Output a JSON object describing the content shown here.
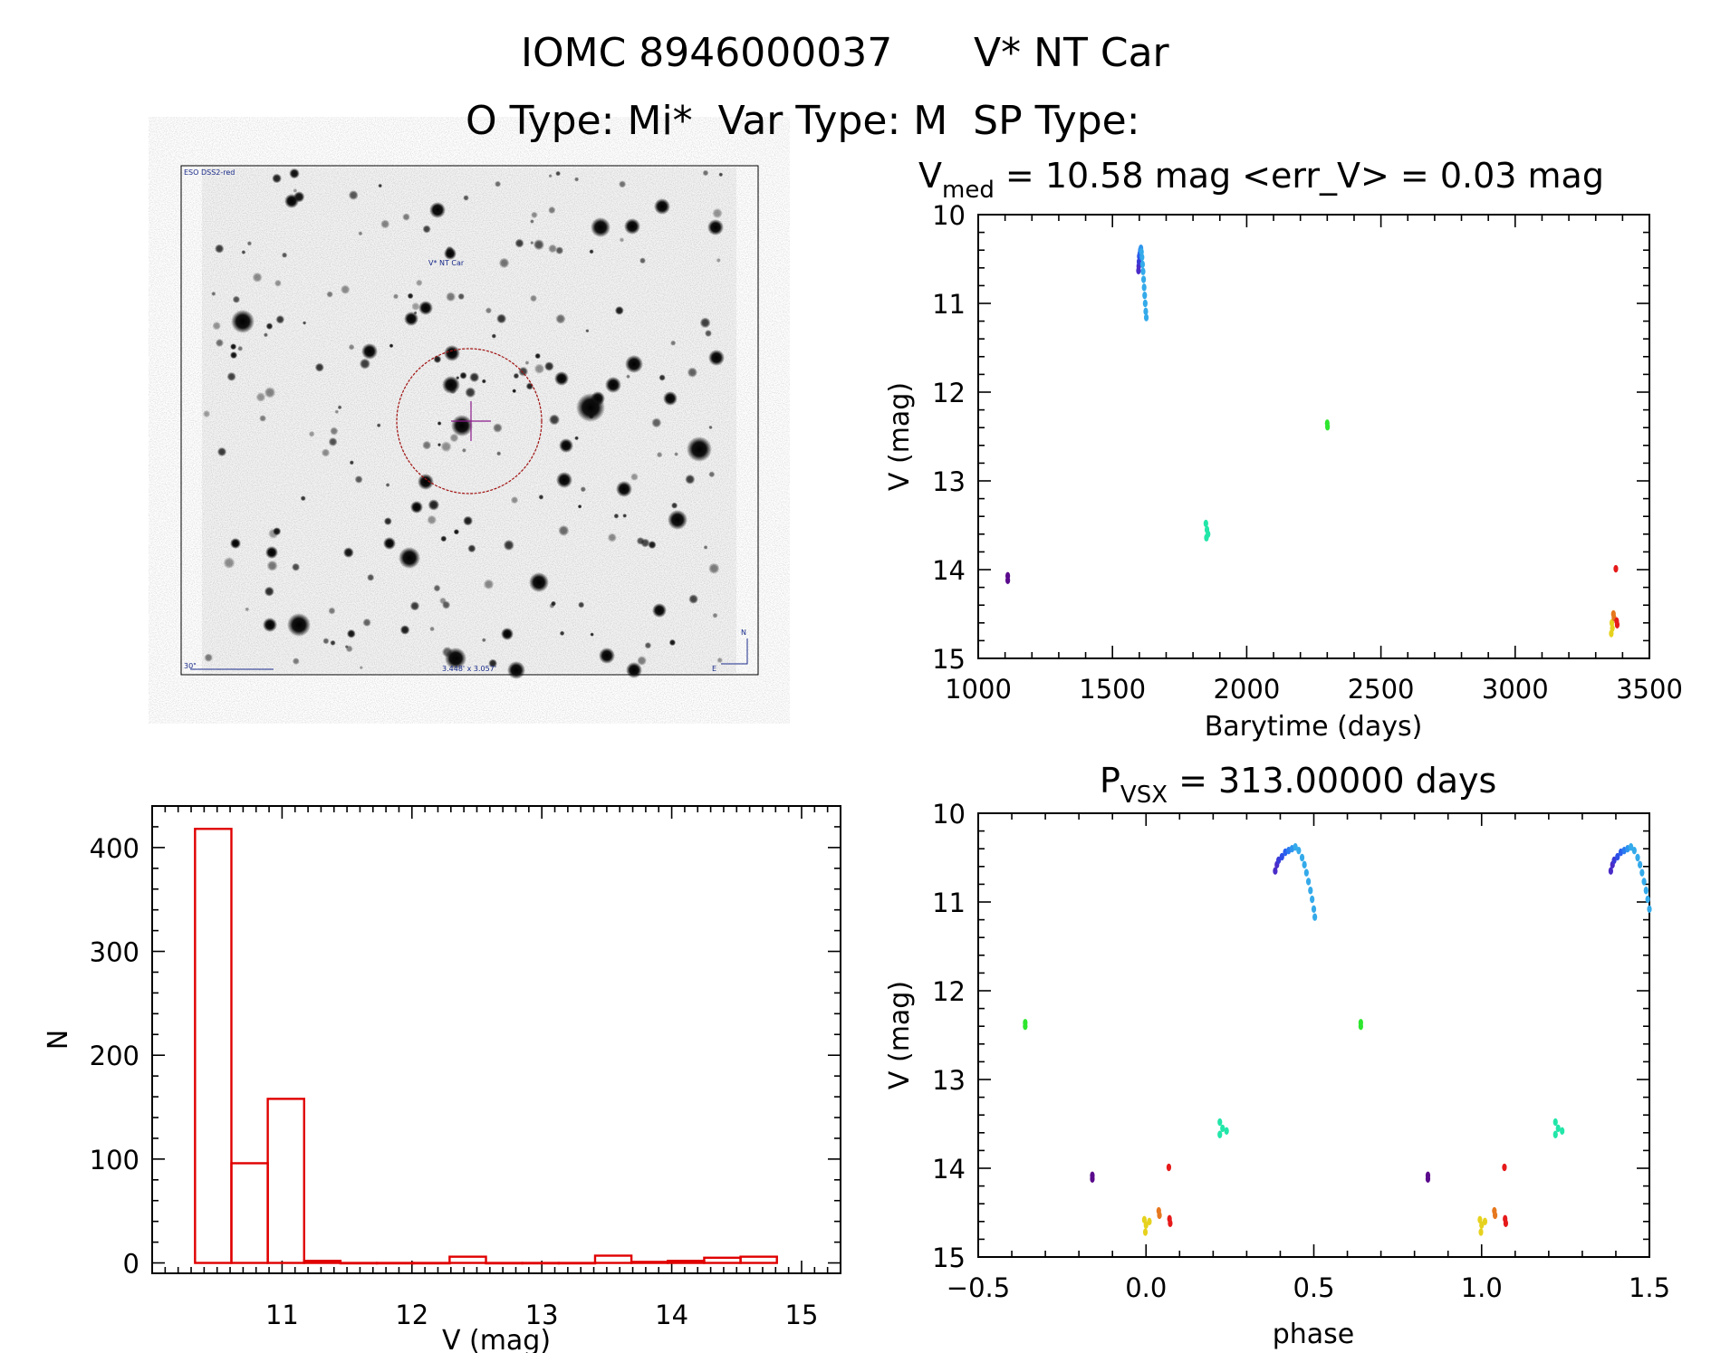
{
  "header": {
    "line1_id": "IOMC 8946000037",
    "line1_name": "V* NT Car",
    "line2": "O Type: Mi*  Var Type: M  SP Type:"
  },
  "image_panel": {
    "survey_label": "ESO DSS2-red",
    "target_label": "V* NT Car",
    "scale_label": "30\"",
    "size_label": "3.448' x 3.057'",
    "north_label": "N",
    "east_label": "E"
  },
  "chart_data": [
    {
      "id": "lightcurve",
      "type": "scatter",
      "title_prefix": "V",
      "title_sub": "med",
      "title_rest": " = 10.58 mag <err_V> = 0.03 mag",
      "xlabel": "Barytime (days)",
      "ylabel": "V (mag)",
      "xlim": [
        1000,
        3500
      ],
      "ylim": [
        15,
        10
      ],
      "xticks": [
        1000,
        1500,
        2000,
        2500,
        3000,
        3500
      ],
      "yticks": [
        10,
        11,
        12,
        13,
        14,
        15
      ],
      "points": [
        {
          "x": 1110,
          "y": 14.07,
          "color": "#5a0a8c"
        },
        {
          "x": 1110,
          "y": 14.12,
          "color": "#5a0a8c"
        },
        {
          "x": 1597,
          "y": 10.63,
          "color": "#4a2cc8"
        },
        {
          "x": 1598,
          "y": 10.58,
          "color": "#4a2cc8"
        },
        {
          "x": 1599,
          "y": 10.53,
          "color": "#3a3ad8"
        },
        {
          "x": 1600,
          "y": 10.47,
          "color": "#2c4ee6"
        },
        {
          "x": 1602,
          "y": 10.44,
          "color": "#2a60ee"
        },
        {
          "x": 1604,
          "y": 10.4,
          "color": "#2a7af0"
        },
        {
          "x": 1606,
          "y": 10.38,
          "color": "#2e95ee"
        },
        {
          "x": 1608,
          "y": 10.42,
          "color": "#34aaea"
        },
        {
          "x": 1610,
          "y": 10.48,
          "color": "#34aaea"
        },
        {
          "x": 1612,
          "y": 10.56,
          "color": "#34aaea"
        },
        {
          "x": 1614,
          "y": 10.64,
          "color": "#34aaea"
        },
        {
          "x": 1616,
          "y": 10.73,
          "color": "#34aaea"
        },
        {
          "x": 1618,
          "y": 10.82,
          "color": "#34aaea"
        },
        {
          "x": 1620,
          "y": 10.91,
          "color": "#34aaea"
        },
        {
          "x": 1622,
          "y": 11.0,
          "color": "#34aaea"
        },
        {
          "x": 1624,
          "y": 11.09,
          "color": "#34aaea"
        },
        {
          "x": 1626,
          "y": 11.16,
          "color": "#34aaea"
        },
        {
          "x": 1848,
          "y": 13.48,
          "color": "#22e6a8"
        },
        {
          "x": 1852,
          "y": 13.55,
          "color": "#22e6a8"
        },
        {
          "x": 1856,
          "y": 13.6,
          "color": "#22e6a8"
        },
        {
          "x": 1850,
          "y": 13.64,
          "color": "#22e6a8"
        },
        {
          "x": 2300,
          "y": 12.35,
          "color": "#2ee62e"
        },
        {
          "x": 2301,
          "y": 12.39,
          "color": "#2ee62e"
        },
        {
          "x": 3375,
          "y": 13.99,
          "color": "#e61a1a"
        },
        {
          "x": 3360,
          "y": 14.6,
          "color": "#e6d21e"
        },
        {
          "x": 3362,
          "y": 14.66,
          "color": "#e6d21e"
        },
        {
          "x": 3358,
          "y": 14.72,
          "color": "#e6d21e"
        },
        {
          "x": 3366,
          "y": 14.5,
          "color": "#e6781e"
        },
        {
          "x": 3368,
          "y": 14.54,
          "color": "#e6781e"
        },
        {
          "x": 3378,
          "y": 14.58,
          "color": "#e61a1a"
        },
        {
          "x": 3380,
          "y": 14.62,
          "color": "#e61a1a"
        }
      ]
    },
    {
      "id": "histogram",
      "type": "bar",
      "title": "",
      "xlabel": "V (mag)",
      "ylabel": "N",
      "xlim": [
        10.0,
        15.3
      ],
      "ylim": [
        -10,
        440
      ],
      "xticks": [
        11,
        12,
        13,
        14,
        15
      ],
      "yticks": [
        0,
        100,
        200,
        300,
        400
      ],
      "bin_edges": [
        10.33,
        10.61,
        10.89,
        11.17,
        11.45,
        11.73,
        12.01,
        12.29,
        12.57,
        12.85,
        13.13,
        13.41,
        13.69,
        13.97,
        14.25,
        14.53,
        14.81
      ],
      "counts": [
        418,
        96,
        158,
        2,
        0,
        0,
        0,
        6,
        0,
        0,
        0,
        7,
        1,
        2,
        5,
        6
      ]
    },
    {
      "id": "phased",
      "type": "scatter",
      "title_prefix": "P",
      "title_sub": "VSX",
      "title_rest": " = 313.00000 days",
      "xlabel": "phase",
      "ylabel": "V (mag)",
      "xlim": [
        -0.5,
        1.5
      ],
      "ylim": [
        15,
        10
      ],
      "xticks": [
        -0.5,
        0.0,
        0.5,
        1.0,
        1.5
      ],
      "yticks": [
        10,
        11,
        12,
        13,
        14,
        15
      ],
      "points": [
        {
          "x": -0.36,
          "y": 12.36,
          "color": "#2ee62e"
        },
        {
          "x": -0.36,
          "y": 12.4,
          "color": "#2ee62e"
        },
        {
          "x": -0.16,
          "y": 14.08,
          "color": "#5a0a8c"
        },
        {
          "x": -0.16,
          "y": 14.12,
          "color": "#5a0a8c"
        },
        {
          "x": -0.005,
          "y": 14.58,
          "color": "#e6d21e"
        },
        {
          "x": 0.0,
          "y": 14.64,
          "color": "#e6d21e"
        },
        {
          "x": -0.002,
          "y": 14.72,
          "color": "#e6d21e"
        },
        {
          "x": 0.01,
          "y": 14.6,
          "color": "#e6d21e"
        },
        {
          "x": 0.038,
          "y": 14.48,
          "color": "#e6781e"
        },
        {
          "x": 0.04,
          "y": 14.53,
          "color": "#e6781e"
        },
        {
          "x": 0.068,
          "y": 13.99,
          "color": "#e61a1a"
        },
        {
          "x": 0.07,
          "y": 14.57,
          "color": "#e61a1a"
        },
        {
          "x": 0.072,
          "y": 14.62,
          "color": "#e61a1a"
        },
        {
          "x": 0.22,
          "y": 13.48,
          "color": "#22e6a8"
        },
        {
          "x": 0.228,
          "y": 13.55,
          "color": "#22e6a8"
        },
        {
          "x": 0.24,
          "y": 13.58,
          "color": "#22e6a8"
        },
        {
          "x": 0.22,
          "y": 13.62,
          "color": "#22e6a8"
        },
        {
          "x": 0.385,
          "y": 10.65,
          "color": "#4a2cc8"
        },
        {
          "x": 0.39,
          "y": 10.58,
          "color": "#4a2cc8"
        },
        {
          "x": 0.395,
          "y": 10.53,
          "color": "#3a3ad8"
        },
        {
          "x": 0.405,
          "y": 10.49,
          "color": "#2c4ee6"
        },
        {
          "x": 0.415,
          "y": 10.44,
          "color": "#2a60ee"
        },
        {
          "x": 0.425,
          "y": 10.42,
          "color": "#2a7af0"
        },
        {
          "x": 0.435,
          "y": 10.4,
          "color": "#2e95ee"
        },
        {
          "x": 0.445,
          "y": 10.38,
          "color": "#34aaea"
        },
        {
          "x": 0.455,
          "y": 10.42,
          "color": "#34aaea"
        },
        {
          "x": 0.465,
          "y": 10.5,
          "color": "#34aaea"
        },
        {
          "x": 0.472,
          "y": 10.58,
          "color": "#34aaea"
        },
        {
          "x": 0.478,
          "y": 10.67,
          "color": "#34aaea"
        },
        {
          "x": 0.484,
          "y": 10.77,
          "color": "#34aaea"
        },
        {
          "x": 0.49,
          "y": 10.87,
          "color": "#34aaea"
        },
        {
          "x": 0.495,
          "y": 10.97,
          "color": "#34aaea"
        },
        {
          "x": 0.5,
          "y": 11.08,
          "color": "#34aaea"
        },
        {
          "x": 0.503,
          "y": 11.17,
          "color": "#34aaea"
        },
        {
          "x": 0.64,
          "y": 12.36,
          "color": "#2ee62e"
        },
        {
          "x": 0.64,
          "y": 12.4,
          "color": "#2ee62e"
        },
        {
          "x": 0.84,
          "y": 14.08,
          "color": "#5a0a8c"
        },
        {
          "x": 0.84,
          "y": 14.12,
          "color": "#5a0a8c"
        },
        {
          "x": 0.995,
          "y": 14.58,
          "color": "#e6d21e"
        },
        {
          "x": 1.0,
          "y": 14.64,
          "color": "#e6d21e"
        },
        {
          "x": 0.998,
          "y": 14.72,
          "color": "#e6d21e"
        },
        {
          "x": 1.01,
          "y": 14.6,
          "color": "#e6d21e"
        },
        {
          "x": 1.038,
          "y": 14.48,
          "color": "#e6781e"
        },
        {
          "x": 1.04,
          "y": 14.53,
          "color": "#e6781e"
        },
        {
          "x": 1.068,
          "y": 13.99,
          "color": "#e61a1a"
        },
        {
          "x": 1.07,
          "y": 14.57,
          "color": "#e61a1a"
        },
        {
          "x": 1.072,
          "y": 14.62,
          "color": "#e61a1a"
        },
        {
          "x": 1.22,
          "y": 13.48,
          "color": "#22e6a8"
        },
        {
          "x": 1.228,
          "y": 13.55,
          "color": "#22e6a8"
        },
        {
          "x": 1.24,
          "y": 13.58,
          "color": "#22e6a8"
        },
        {
          "x": 1.22,
          "y": 13.62,
          "color": "#22e6a8"
        },
        {
          "x": 1.385,
          "y": 10.65,
          "color": "#4a2cc8"
        },
        {
          "x": 1.39,
          "y": 10.58,
          "color": "#4a2cc8"
        },
        {
          "x": 1.395,
          "y": 10.53,
          "color": "#3a3ad8"
        },
        {
          "x": 1.405,
          "y": 10.49,
          "color": "#2c4ee6"
        },
        {
          "x": 1.415,
          "y": 10.44,
          "color": "#2a60ee"
        },
        {
          "x": 1.425,
          "y": 10.42,
          "color": "#2a7af0"
        },
        {
          "x": 1.435,
          "y": 10.4,
          "color": "#2e95ee"
        },
        {
          "x": 1.445,
          "y": 10.38,
          "color": "#34aaea"
        },
        {
          "x": 1.455,
          "y": 10.42,
          "color": "#34aaea"
        },
        {
          "x": 1.465,
          "y": 10.5,
          "color": "#34aaea"
        },
        {
          "x": 1.472,
          "y": 10.58,
          "color": "#34aaea"
        },
        {
          "x": 1.478,
          "y": 10.67,
          "color": "#34aaea"
        },
        {
          "x": 1.484,
          "y": 10.77,
          "color": "#34aaea"
        },
        {
          "x": 1.49,
          "y": 10.87,
          "color": "#34aaea"
        },
        {
          "x": 1.495,
          "y": 10.97,
          "color": "#34aaea"
        },
        {
          "x": 1.5,
          "y": 11.08,
          "color": "#34aaea"
        }
      ]
    }
  ],
  "colors": {
    "histogram_bar": "#e00000",
    "finder_circle": "#a01010",
    "finder_cross": "#8a1a8a",
    "finder_label": "#c01010",
    "finder_scale": "#1a2b8a"
  }
}
